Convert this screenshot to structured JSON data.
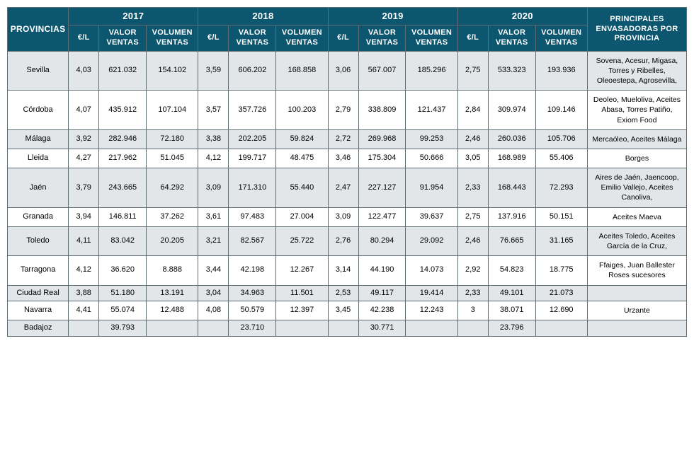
{
  "headers": {
    "provincias": "PROVINCIAS",
    "years": [
      "2017",
      "2018",
      "2019",
      "2020"
    ],
    "sub": {
      "eur": "€/L",
      "valor": "VALOR VENTAS",
      "volumen": "VOLUMEN VENTAS"
    },
    "envasadoras": "PRINCIPALES ENVASADORAS POR PROVINCIA"
  },
  "styling": {
    "header_bg": "#0c566f",
    "header_fg": "#ffffff",
    "border_color": "#5f6c72",
    "row_alt_bg": "#e2e6e9",
    "row_bg": "#ffffff",
    "font_family": "Arial",
    "header_font_size": 11,
    "year_font_size": 13,
    "body_font_size": 11,
    "env_font_size": 10.5
  },
  "columns": {
    "prov_width": 80,
    "eur_width": 40,
    "valor_width": 62,
    "volumen_width": 68,
    "env_width": 130
  },
  "rows": [
    {
      "prov": "Sevilla",
      "alt": true,
      "y2017": {
        "eur": "4,03",
        "val": "621.032",
        "vol": "154.102"
      },
      "y2018": {
        "eur": "3,59",
        "val": "606.202",
        "vol": "168.858"
      },
      "y2019": {
        "eur": "3,06",
        "val": "567.007",
        "vol": "185.296"
      },
      "y2020": {
        "eur": "2,75",
        "val": "533.323",
        "vol": "193.936"
      },
      "env": "Sovena, Acesur, Migasa, Torres y Ribelles, Oleoestepa, Agrosevilla,"
    },
    {
      "prov": "Córdoba",
      "alt": false,
      "y2017": {
        "eur": "4,07",
        "val": "435.912",
        "vol": "107.104"
      },
      "y2018": {
        "eur": "3,57",
        "val": "357.726",
        "vol": "100.203"
      },
      "y2019": {
        "eur": "2,79",
        "val": "338.809",
        "vol": "121.437"
      },
      "y2020": {
        "eur": "2,84",
        "val": "309.974",
        "vol": "109.146"
      },
      "env": "Deoleo, Mueloliva, Aceites Abasa, Torres Patiño, Exiom Food"
    },
    {
      "prov": "Málaga",
      "alt": true,
      "y2017": {
        "eur": "3,92",
        "val": "282.946",
        "vol": "72.180"
      },
      "y2018": {
        "eur": "3,38",
        "val": "202.205",
        "vol": "59.824"
      },
      "y2019": {
        "eur": "2,72",
        "val": "269.968",
        "vol": "99.253"
      },
      "y2020": {
        "eur": "2,46",
        "val": "260.036",
        "vol": "105.706"
      },
      "env": "Mercaóleo, Aceites Málaga"
    },
    {
      "prov": "Lleida",
      "alt": false,
      "y2017": {
        "eur": "4,27",
        "val": "217.962",
        "vol": "51.045"
      },
      "y2018": {
        "eur": "4,12",
        "val": "199.717",
        "vol": "48.475"
      },
      "y2019": {
        "eur": "3,46",
        "val": "175.304",
        "vol": "50.666"
      },
      "y2020": {
        "eur": "3,05",
        "val": "168.989",
        "vol": "55.406"
      },
      "env": "Borges"
    },
    {
      "prov": "Jaén",
      "alt": true,
      "y2017": {
        "eur": "3,79",
        "val": "243.665",
        "vol": "64.292"
      },
      "y2018": {
        "eur": "3,09",
        "val": "171.310",
        "vol": "55.440"
      },
      "y2019": {
        "eur": "2,47",
        "val": "227.127",
        "vol": "91.954"
      },
      "y2020": {
        "eur": "2,33",
        "val": "168.443",
        "vol": "72.293"
      },
      "env": "Aires de Jaén, Jaencoop, Emilio Vallejo, Aceites Canoliva,"
    },
    {
      "prov": "Granada",
      "alt": false,
      "y2017": {
        "eur": "3,94",
        "val": "146.811",
        "vol": "37.262"
      },
      "y2018": {
        "eur": "3,61",
        "val": "97.483",
        "vol": "27.004"
      },
      "y2019": {
        "eur": "3,09",
        "val": "122.477",
        "vol": "39.637"
      },
      "y2020": {
        "eur": "2,75",
        "val": "137.916",
        "vol": "50.151"
      },
      "env": "Aceites Maeva"
    },
    {
      "prov": "Toledo",
      "alt": true,
      "y2017": {
        "eur": "4,11",
        "val": "83.042",
        "vol": "20.205"
      },
      "y2018": {
        "eur": "3,21",
        "val": "82.567",
        "vol": "25.722"
      },
      "y2019": {
        "eur": "2,76",
        "val": "80.294",
        "vol": "29.092"
      },
      "y2020": {
        "eur": "2,46",
        "val": "76.665",
        "vol": "31.165"
      },
      "env": "Aceites Toledo, Aceites García de la Cruz,"
    },
    {
      "prov": "Tarragona",
      "alt": false,
      "y2017": {
        "eur": "4,12",
        "val": "36.620",
        "vol": "8.888"
      },
      "y2018": {
        "eur": "3,44",
        "val": "42.198",
        "vol": "12.267"
      },
      "y2019": {
        "eur": "3,14",
        "val": "44.190",
        "vol": "14.073"
      },
      "y2020": {
        "eur": "2,92",
        "val": "54.823",
        "vol": "18.775"
      },
      "env": "Ffaiges, Juan Ballester Roses sucesores"
    },
    {
      "prov": "Ciudad Real",
      "alt": true,
      "y2017": {
        "eur": "3,88",
        "val": "51.180",
        "vol": "13.191"
      },
      "y2018": {
        "eur": "3,04",
        "val": "34.963",
        "vol": "11.501"
      },
      "y2019": {
        "eur": "2,53",
        "val": "49.117",
        "vol": "19.414"
      },
      "y2020": {
        "eur": "2,33",
        "val": "49.101",
        "vol": "21.073"
      },
      "env": ""
    },
    {
      "prov": "Navarra",
      "alt": false,
      "y2017": {
        "eur": "4,41",
        "val": "55.074",
        "vol": "12.488"
      },
      "y2018": {
        "eur": "4,08",
        "val": "50.579",
        "vol": "12.397"
      },
      "y2019": {
        "eur": "3,45",
        "val": "42.238",
        "vol": "12.243"
      },
      "y2020": {
        "eur": "3",
        "val": "38.071",
        "vol": "12.690"
      },
      "env": "Urzante"
    },
    {
      "prov": "Badajoz",
      "alt": true,
      "y2017": {
        "eur": "",
        "val": "39.793",
        "vol": ""
      },
      "y2018": {
        "eur": "",
        "val": "23.710",
        "vol": ""
      },
      "y2019": {
        "eur": "",
        "val": "30.771",
        "vol": ""
      },
      "y2020": {
        "eur": "",
        "val": "23.796",
        "vol": ""
      },
      "env": ""
    }
  ]
}
